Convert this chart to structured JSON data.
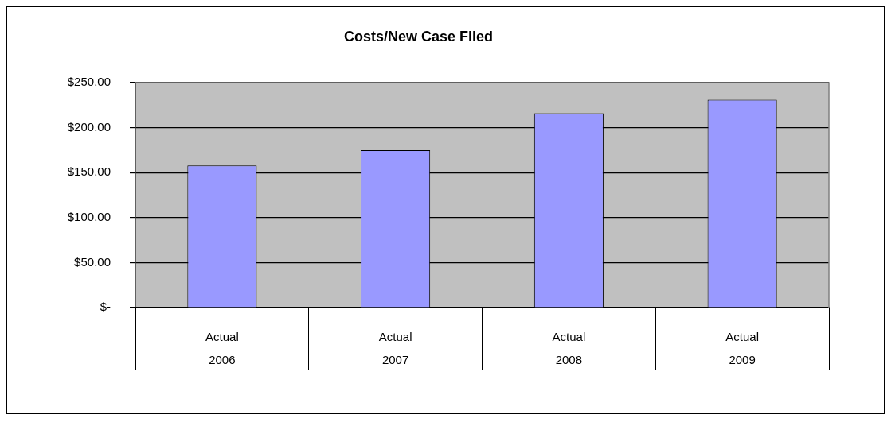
{
  "chart_data": {
    "type": "bar",
    "title": "Costs/New Case Filed",
    "categories": [
      "Actual\n2006",
      "Actual\n2007",
      "Actual\n2008",
      "Actual\n2009"
    ],
    "values": [
      158,
      175,
      216,
      231
    ],
    "color": "#9999ff",
    "ylim": [
      0,
      250
    ],
    "yticks": [
      {
        "value": 0,
        "label": "$-"
      },
      {
        "value": 50,
        "label": "$50.00"
      },
      {
        "value": 100,
        "label": "$100.00"
      },
      {
        "value": 150,
        "label": "$150.00"
      },
      {
        "value": 200,
        "label": "$200.00"
      },
      {
        "value": 250,
        "label": "$250.00"
      }
    ],
    "grid": "y",
    "legend": false
  }
}
